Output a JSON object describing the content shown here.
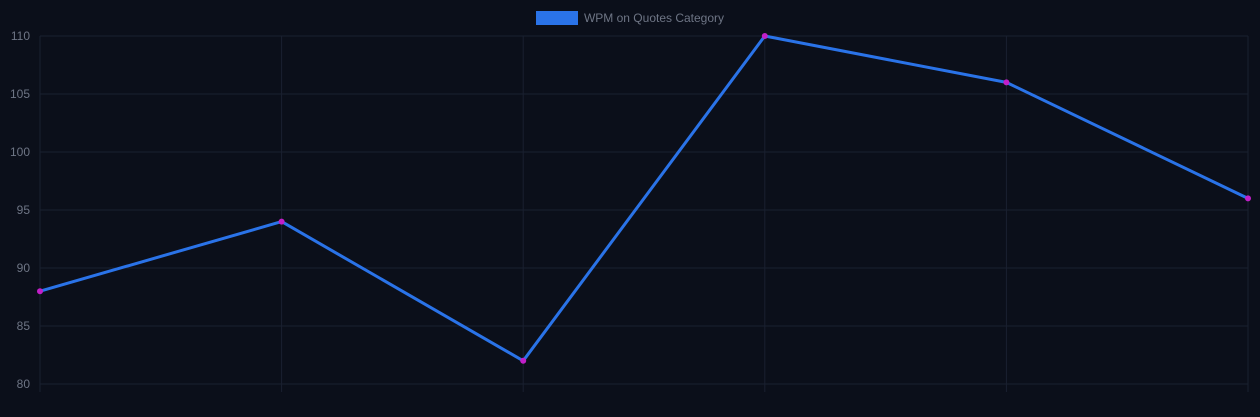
{
  "chart_data": {
    "type": "line",
    "legend": {
      "label": "WPM on Quotes Category",
      "placement": "top-center"
    },
    "categories": [
      "",
      "",
      "",
      "",
      "",
      ""
    ],
    "series": [
      {
        "name": "WPM on Quotes Category",
        "values": [
          88,
          94,
          82,
          110,
          106,
          96
        ],
        "line_color": "#2a73e8",
        "point_color": "#c21fc8"
      }
    ],
    "ylim": [
      80,
      110
    ],
    "yticks": [
      80,
      85,
      90,
      95,
      100,
      105,
      110
    ],
    "grid": true,
    "title": "",
    "xlabel": "",
    "ylabel": ""
  },
  "colors": {
    "background": "#0b0f1a",
    "grid": "#1a2030",
    "text": "#6e7585"
  }
}
